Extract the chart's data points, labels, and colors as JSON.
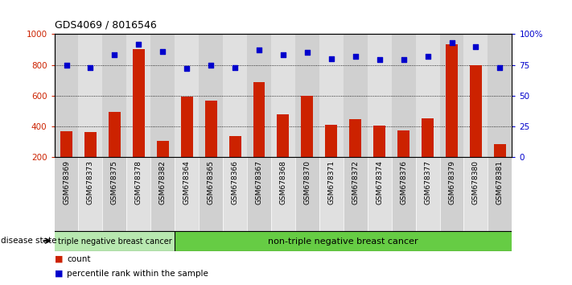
{
  "title": "GDS4069 / 8016546",
  "samples": [
    "GSM678369",
    "GSM678373",
    "GSM678375",
    "GSM678378",
    "GSM678382",
    "GSM678364",
    "GSM678365",
    "GSM678366",
    "GSM678367",
    "GSM678368",
    "GSM678370",
    "GSM678371",
    "GSM678372",
    "GSM678374",
    "GSM678376",
    "GSM678377",
    "GSM678379",
    "GSM678380",
    "GSM678381"
  ],
  "counts": [
    365,
    362,
    495,
    905,
    302,
    590,
    565,
    335,
    685,
    477,
    598,
    411,
    446,
    404,
    372,
    452,
    935,
    800,
    285
  ],
  "percentiles": [
    75,
    73,
    83,
    92,
    86,
    72,
    75,
    73,
    87,
    83,
    85,
    80,
    82,
    79,
    79,
    82,
    93,
    90,
    73
  ],
  "group1_count": 5,
  "group1_label": "triple negative breast cancer",
  "group2_label": "non-triple negative breast cancer",
  "group1_color": "#b8e8b0",
  "group2_color": "#66cc44",
  "bar_color": "#cc2200",
  "dot_color": "#0000cc",
  "ylim_left": [
    200,
    1000
  ],
  "ylim_right": [
    0,
    100
  ],
  "yticks_left": [
    200,
    400,
    600,
    800,
    1000
  ],
  "ytick_labels_left": [
    "200",
    "400",
    "600",
    "800",
    "1000"
  ],
  "yticks_right": [
    0,
    25,
    50,
    75,
    100
  ],
  "ytick_labels_right": [
    "0",
    "25",
    "50",
    "75",
    "100%"
  ],
  "grid_values": [
    400,
    600,
    800
  ],
  "legend_count_label": "count",
  "legend_pct_label": "percentile rank within the sample",
  "disease_state_label": "disease state",
  "background_color": "#ffffff",
  "tick_label_color_left": "#cc2200",
  "tick_label_color_right": "#0000cc",
  "col_bg_even": "#d0d0d0",
  "col_bg_odd": "#e0e0e0"
}
